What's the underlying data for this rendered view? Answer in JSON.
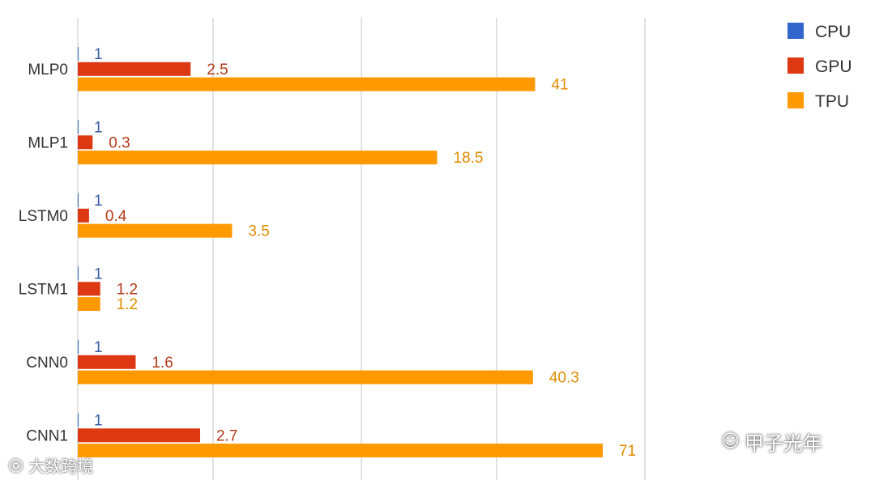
{
  "chart_data": {
    "type": "bar",
    "orientation": "horizontal",
    "categories": [
      "MLP0",
      "MLP1",
      "LSTM0",
      "LSTM1",
      "CNN0",
      "CNN1"
    ],
    "series": [
      {
        "name": "CPU",
        "color": "#3366cc",
        "label_color": "#3a5da8",
        "values": [
          1,
          1,
          1,
          1,
          1,
          1
        ],
        "labels": [
          "1",
          "1",
          "1",
          "1",
          "1",
          "1"
        ]
      },
      {
        "name": "GPU",
        "color": "#dc3912",
        "label_color": "#b33a1a",
        "values": [
          2.5,
          0.3,
          0.4,
          1.2,
          1.6,
          2.7
        ],
        "labels": [
          "2.5",
          "0.3",
          "0.4",
          "1.2",
          "1.6",
          "2.7"
        ]
      },
      {
        "name": "TPU",
        "color": "#ff9900",
        "label_color": "#e08c00",
        "values": [
          41,
          18.5,
          3.5,
          1.2,
          40.3,
          71
        ],
        "labels": [
          "41",
          "18.5",
          "3.5",
          "1.2",
          "40.3",
          "71"
        ]
      }
    ],
    "title": "",
    "xlabel": "",
    "ylabel": "",
    "x_scale": "log",
    "xlim": [
      0.2,
      100
    ],
    "grid": true,
    "legend_position": "top-right"
  },
  "watermarks": {
    "left": "大数跨境",
    "right": "甲子光年"
  }
}
